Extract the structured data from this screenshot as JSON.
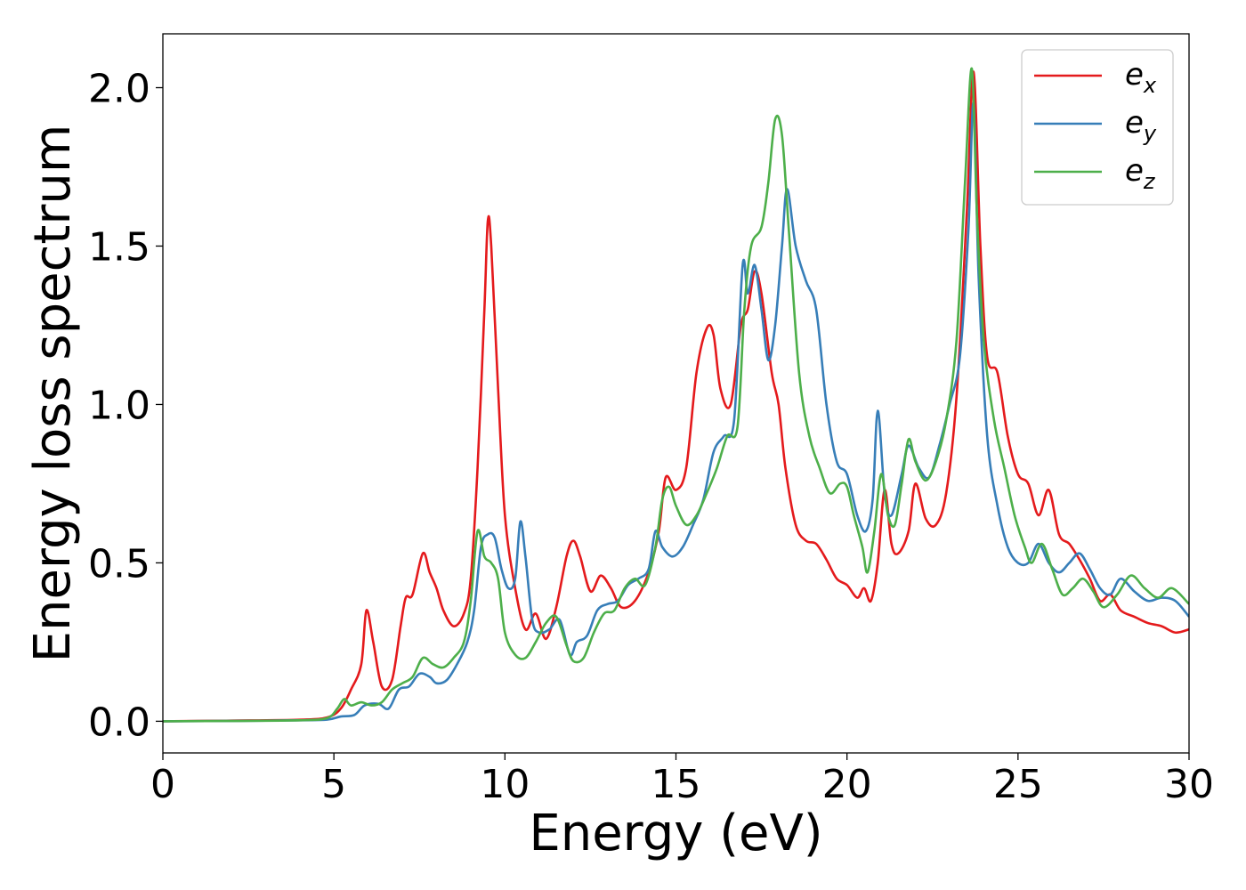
{
  "chart_data": {
    "type": "line",
    "title": "",
    "xlabel": "Energy (eV)",
    "ylabel": "Energy loss spectrum",
    "xlim": [
      0,
      30
    ],
    "ylim": [
      -0.1,
      2.17
    ],
    "xticks": [
      0,
      5,
      10,
      15,
      20,
      25,
      30
    ],
    "xtick_labels": [
      "0",
      "5",
      "10",
      "15",
      "20",
      "25",
      "30"
    ],
    "yticks": [
      0.0,
      0.5,
      1.0,
      1.5,
      2.0
    ],
    "ytick_labels": [
      "0.0",
      "0.5",
      "1.0",
      "1.5",
      "2.0"
    ],
    "grid": false,
    "legend_position": "top-right",
    "series": [
      {
        "name": "e",
        "subscript": "x",
        "color": "#e41a1c",
        "x": [
          0,
          2,
          4,
          4.8,
          5.2,
          5.5,
          5.8,
          5.95,
          6.15,
          6.4,
          6.7,
          6.95,
          7.1,
          7.3,
          7.6,
          7.8,
          8.0,
          8.2,
          8.5,
          8.8,
          9.0,
          9.2,
          9.4,
          9.5,
          9.6,
          9.8,
          10.0,
          10.3,
          10.6,
          10.9,
          11.2,
          11.5,
          11.8,
          12.0,
          12.2,
          12.5,
          12.8,
          13.1,
          13.4,
          13.8,
          14.2,
          14.5,
          14.7,
          15.0,
          15.3,
          15.6,
          15.9,
          16.1,
          16.3,
          16.6,
          16.9,
          17.1,
          17.3,
          17.5,
          17.8,
          18.0,
          18.2,
          18.5,
          18.8,
          19.1,
          19.4,
          19.7,
          20.0,
          20.3,
          20.5,
          20.7,
          20.9,
          21.1,
          21.3,
          21.5,
          21.8,
          22.0,
          22.3,
          22.6,
          22.9,
          23.2,
          23.5,
          23.7,
          23.9,
          24.1,
          24.4,
          24.7,
          25.0,
          25.3,
          25.6,
          25.9,
          26.2,
          26.5,
          26.8,
          27.1,
          27.4,
          27.7,
          28.0,
          28.4,
          28.8,
          29.2,
          29.6,
          30.0
        ],
        "y": [
          0.0,
          0.002,
          0.005,
          0.012,
          0.04,
          0.1,
          0.18,
          0.35,
          0.25,
          0.11,
          0.13,
          0.3,
          0.39,
          0.4,
          0.53,
          0.47,
          0.42,
          0.35,
          0.3,
          0.34,
          0.45,
          0.8,
          1.3,
          1.58,
          1.5,
          1.05,
          0.65,
          0.42,
          0.29,
          0.34,
          0.26,
          0.36,
          0.52,
          0.57,
          0.52,
          0.41,
          0.46,
          0.42,
          0.36,
          0.38,
          0.47,
          0.6,
          0.77,
          0.73,
          0.8,
          1.1,
          1.24,
          1.22,
          1.05,
          1.0,
          1.25,
          1.3,
          1.42,
          1.35,
          1.1,
          1.0,
          0.8,
          0.62,
          0.57,
          0.56,
          0.51,
          0.45,
          0.43,
          0.39,
          0.42,
          0.38,
          0.5,
          0.73,
          0.56,
          0.53,
          0.6,
          0.75,
          0.64,
          0.62,
          0.72,
          1.02,
          1.6,
          2.05,
          1.5,
          1.15,
          1.1,
          0.9,
          0.78,
          0.75,
          0.65,
          0.73,
          0.59,
          0.56,
          0.51,
          0.45,
          0.38,
          0.4,
          0.35,
          0.33,
          0.31,
          0.3,
          0.28,
          0.29
        ]
      },
      {
        "name": "e",
        "subscript": "y",
        "color": "#377eb8",
        "x": [
          0,
          2,
          4,
          4.8,
          5.2,
          5.6,
          5.9,
          6.3,
          6.6,
          6.9,
          7.2,
          7.5,
          7.8,
          8.0,
          8.3,
          8.6,
          8.9,
          9.1,
          9.3,
          9.5,
          9.7,
          9.9,
          10.1,
          10.3,
          10.45,
          10.6,
          10.8,
          11.0,
          11.3,
          11.6,
          11.9,
          12.1,
          12.4,
          12.7,
          13.0,
          13.3,
          13.6,
          13.9,
          14.2,
          14.4,
          14.6,
          14.9,
          15.2,
          15.5,
          15.8,
          16.1,
          16.4,
          16.7,
          16.95,
          17.1,
          17.3,
          17.5,
          17.7,
          17.9,
          18.1,
          18.25,
          18.5,
          18.8,
          19.1,
          19.4,
          19.7,
          20.0,
          20.3,
          20.55,
          20.75,
          20.9,
          21.1,
          21.3,
          21.6,
          21.8,
          22.1,
          22.4,
          22.7,
          23.0,
          23.3,
          23.55,
          23.7,
          23.85,
          24.1,
          24.4,
          24.7,
          25.0,
          25.3,
          25.6,
          25.9,
          26.2,
          26.5,
          26.8,
          27.1,
          27.4,
          27.7,
          28.0,
          28.4,
          28.8,
          29.2,
          29.6,
          30.0
        ],
        "y": [
          0.0,
          0.001,
          0.003,
          0.005,
          0.015,
          0.02,
          0.05,
          0.055,
          0.04,
          0.1,
          0.11,
          0.15,
          0.14,
          0.12,
          0.13,
          0.18,
          0.25,
          0.35,
          0.55,
          0.59,
          0.58,
          0.48,
          0.42,
          0.45,
          0.63,
          0.52,
          0.32,
          0.28,
          0.29,
          0.32,
          0.21,
          0.25,
          0.27,
          0.35,
          0.37,
          0.38,
          0.43,
          0.45,
          0.48,
          0.6,
          0.55,
          0.52,
          0.55,
          0.62,
          0.7,
          0.85,
          0.9,
          0.95,
          1.44,
          1.35,
          1.44,
          1.3,
          1.14,
          1.25,
          1.5,
          1.68,
          1.5,
          1.39,
          1.3,
          1.0,
          0.82,
          0.78,
          0.65,
          0.6,
          0.7,
          0.98,
          0.72,
          0.65,
          0.78,
          0.87,
          0.8,
          0.77,
          0.87,
          1.0,
          1.15,
          1.55,
          1.95,
          1.4,
          0.9,
          0.68,
          0.55,
          0.5,
          0.5,
          0.56,
          0.5,
          0.47,
          0.5,
          0.53,
          0.48,
          0.42,
          0.4,
          0.45,
          0.41,
          0.38,
          0.39,
          0.38,
          0.33
        ]
      },
      {
        "name": "e",
        "subscript": "z",
        "color": "#4daf4a",
        "x": [
          0,
          2,
          4,
          4.8,
          5.1,
          5.3,
          5.5,
          5.8,
          6.1,
          6.4,
          6.7,
          7.0,
          7.3,
          7.6,
          7.9,
          8.2,
          8.5,
          8.8,
          9.0,
          9.2,
          9.4,
          9.6,
          9.8,
          10.0,
          10.3,
          10.6,
          10.9,
          11.2,
          11.5,
          11.8,
          12.0,
          12.3,
          12.6,
          12.9,
          13.2,
          13.5,
          13.8,
          14.1,
          14.4,
          14.6,
          14.8,
          15.0,
          15.3,
          15.6,
          15.9,
          16.2,
          16.5,
          16.8,
          17.0,
          17.2,
          17.5,
          17.7,
          17.9,
          18.1,
          18.3,
          18.6,
          18.9,
          19.2,
          19.5,
          19.8,
          20.0,
          20.2,
          20.45,
          20.6,
          20.8,
          21.0,
          21.2,
          21.4,
          21.6,
          21.8,
          22.0,
          22.3,
          22.6,
          22.9,
          23.2,
          23.45,
          23.65,
          23.8,
          24.0,
          24.3,
          24.6,
          24.9,
          25.2,
          25.4,
          25.7,
          26.0,
          26.3,
          26.6,
          26.9,
          27.2,
          27.5,
          27.9,
          28.3,
          28.7,
          29.1,
          29.5,
          30.0
        ],
        "y": [
          0.0,
          0.001,
          0.003,
          0.01,
          0.04,
          0.07,
          0.05,
          0.06,
          0.05,
          0.06,
          0.1,
          0.12,
          0.14,
          0.2,
          0.18,
          0.17,
          0.2,
          0.25,
          0.38,
          0.6,
          0.52,
          0.5,
          0.45,
          0.28,
          0.21,
          0.2,
          0.25,
          0.31,
          0.33,
          0.24,
          0.19,
          0.2,
          0.28,
          0.34,
          0.35,
          0.42,
          0.45,
          0.43,
          0.55,
          0.7,
          0.74,
          0.68,
          0.62,
          0.65,
          0.72,
          0.8,
          0.9,
          0.93,
          1.3,
          1.5,
          1.56,
          1.7,
          1.9,
          1.85,
          1.55,
          1.1,
          0.9,
          0.8,
          0.72,
          0.75,
          0.74,
          0.65,
          0.55,
          0.47,
          0.6,
          0.78,
          0.65,
          0.62,
          0.75,
          0.89,
          0.82,
          0.76,
          0.82,
          0.95,
          1.2,
          1.7,
          2.06,
          1.6,
          1.2,
          0.95,
          0.8,
          0.65,
          0.55,
          0.5,
          0.56,
          0.48,
          0.4,
          0.42,
          0.45,
          0.41,
          0.36,
          0.4,
          0.46,
          0.42,
          0.39,
          0.42,
          0.37
        ]
      }
    ]
  }
}
